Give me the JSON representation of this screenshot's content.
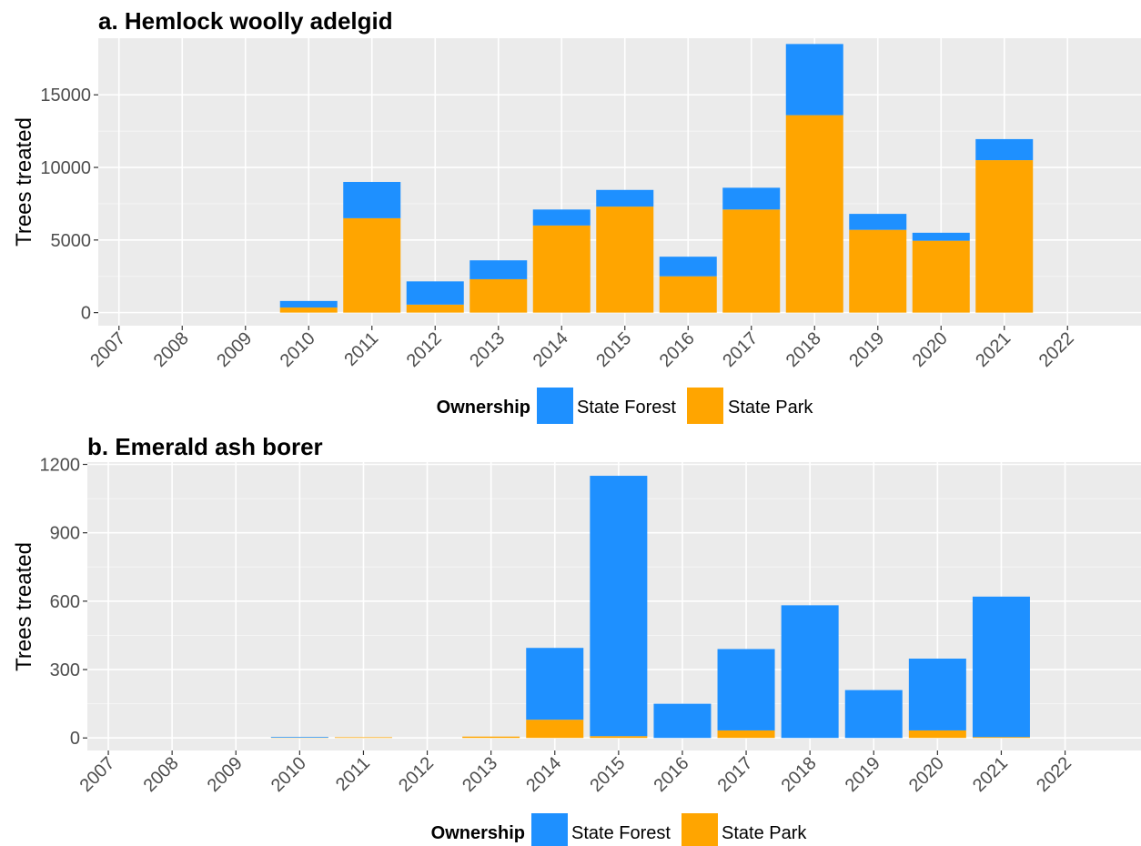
{
  "chart_data": [
    {
      "type": "bar",
      "stacked": true,
      "title": "a. Hemlock woolly adelgid",
      "ylabel": "Trees treated",
      "xlabel": "",
      "categories": [
        "2007",
        "2008",
        "2009",
        "2010",
        "2011",
        "2012",
        "2013",
        "2014",
        "2015",
        "2016",
        "2017",
        "2018",
        "2019",
        "2020",
        "2021",
        "2022"
      ],
      "yticks": [
        "0",
        "5000",
        "10000",
        "15000"
      ],
      "ylim": [
        -900,
        18900
      ],
      "grid": true,
      "series": [
        {
          "name": "State Park",
          "color": "#FFA500",
          "values": [
            0,
            0,
            0,
            350,
            6500,
            550,
            2300,
            6000,
            7300,
            2500,
            7100,
            13600,
            5700,
            4950,
            10500,
            0
          ]
        },
        {
          "name": "State Forest",
          "color": "#1E90FF",
          "values": [
            0,
            0,
            0,
            450,
            2500,
            1600,
            1300,
            1100,
            1150,
            1350,
            1500,
            4900,
            1100,
            550,
            1450,
            0
          ]
        }
      ],
      "legend": {
        "title": "Ownership",
        "position": "bottom",
        "items": [
          "State Forest",
          "State Park"
        ]
      }
    },
    {
      "type": "bar",
      "stacked": true,
      "title": "b. Emerald ash borer",
      "ylabel": "Trees treated",
      "xlabel": "",
      "categories": [
        "2007",
        "2008",
        "2009",
        "2010",
        "2011",
        "2012",
        "2013",
        "2014",
        "2015",
        "2016",
        "2017",
        "2018",
        "2019",
        "2020",
        "2021",
        "2022"
      ],
      "yticks": [
        "0",
        "300",
        "600",
        "900",
        "1200"
      ],
      "ylim": [
        -55,
        1210
      ],
      "grid": true,
      "series": [
        {
          "name": "State Park",
          "color": "#FFA500",
          "values": [
            0,
            0,
            0,
            1,
            3,
            0,
            6,
            80,
            8,
            0,
            33,
            0,
            0,
            33,
            4,
            0
          ]
        },
        {
          "name": "State Forest",
          "color": "#1E90FF",
          "values": [
            0,
            0,
            0,
            3,
            0,
            0,
            0,
            315,
            1142,
            150,
            357,
            582,
            210,
            315,
            616,
            0
          ]
        }
      ],
      "legend": {
        "title": "Ownership",
        "position": "bottom",
        "items": [
          "State Forest",
          "State Park"
        ]
      }
    }
  ]
}
